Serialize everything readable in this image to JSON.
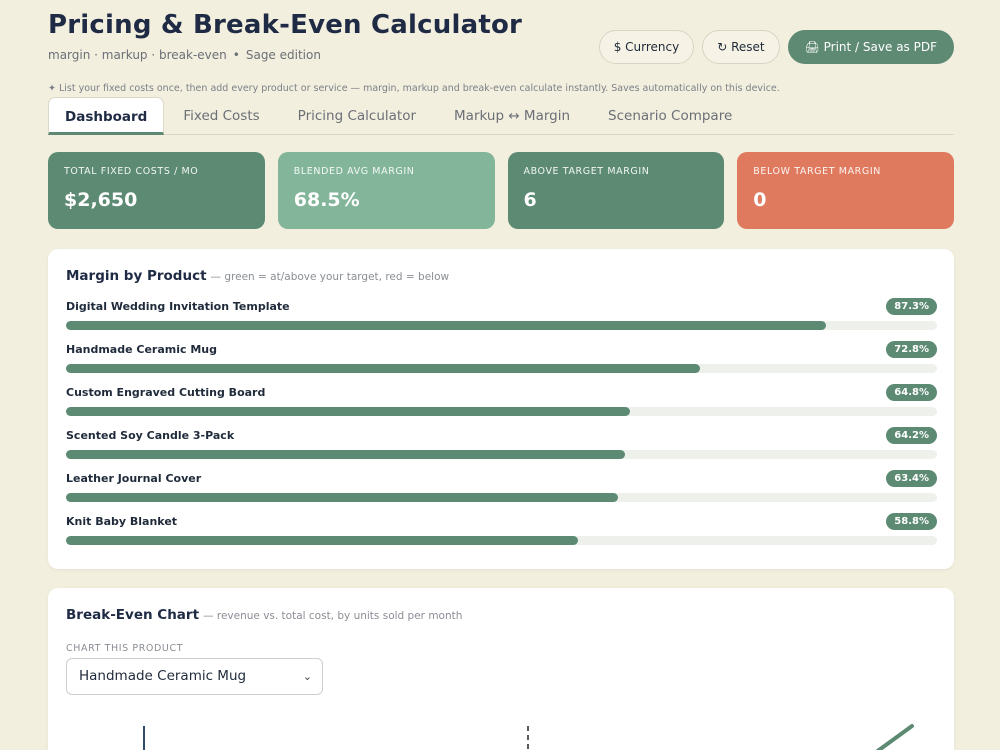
{
  "header": {
    "title": "Pricing & Break-Even Calculator",
    "subtitle_main": "margin · markup · break-even",
    "subtitle_sep": "•",
    "subtitle_edition": "Sage edition",
    "currency_label": "$ Currency",
    "reset_label": "↻ Reset",
    "print_label": "🖨 Print / Save as PDF"
  },
  "hint": "✦ List your fixed costs once, then add every product or service — margin, markup and break-even calculate instantly. Saves automatically on this device.",
  "tabs": [
    "Dashboard",
    "Fixed Costs",
    "Pricing Calculator",
    "Markup ↔ Margin",
    "Scenario Compare"
  ],
  "kpis": [
    {
      "label": "Total Fixed Costs / Mo",
      "value": "$2,650",
      "color": "#5c8a73"
    },
    {
      "label": "Blended Avg Margin",
      "value": "68.5%",
      "color": "#82b59a"
    },
    {
      "label": "Above Target Margin",
      "value": "6",
      "color": "#5c8a73"
    },
    {
      "label": "Below Target Margin",
      "value": "0",
      "color": "#e07a5f"
    }
  ],
  "margin_card": {
    "title": "Margin by Product",
    "note": "— green = at/above your target, red = below",
    "products": [
      {
        "name": "Digital Wedding Invitation Template",
        "margin": 87.3,
        "label": "87.3%"
      },
      {
        "name": "Handmade Ceramic Mug",
        "margin": 72.8,
        "label": "72.8%"
      },
      {
        "name": "Custom Engraved Cutting Board",
        "margin": 64.8,
        "label": "64.8%"
      },
      {
        "name": "Scented Soy Candle 3-Pack",
        "margin": 64.2,
        "label": "64.2%"
      },
      {
        "name": "Leather Journal Cover",
        "margin": 63.4,
        "label": "63.4%"
      },
      {
        "name": "Knit Baby Blanket",
        "margin": 58.8,
        "label": "58.8%"
      }
    ]
  },
  "breakeven_card": {
    "title": "Break-Even Chart",
    "note": "— revenue vs. total cost, by units sold per month",
    "select_label": "Chart this product",
    "selected_product": "Handmade Ceramic Mug"
  },
  "colors": {
    "accent": "#5c8a73",
    "accent_light": "#82b59a",
    "warning": "#e07a5f",
    "background": "#f3efdf"
  }
}
